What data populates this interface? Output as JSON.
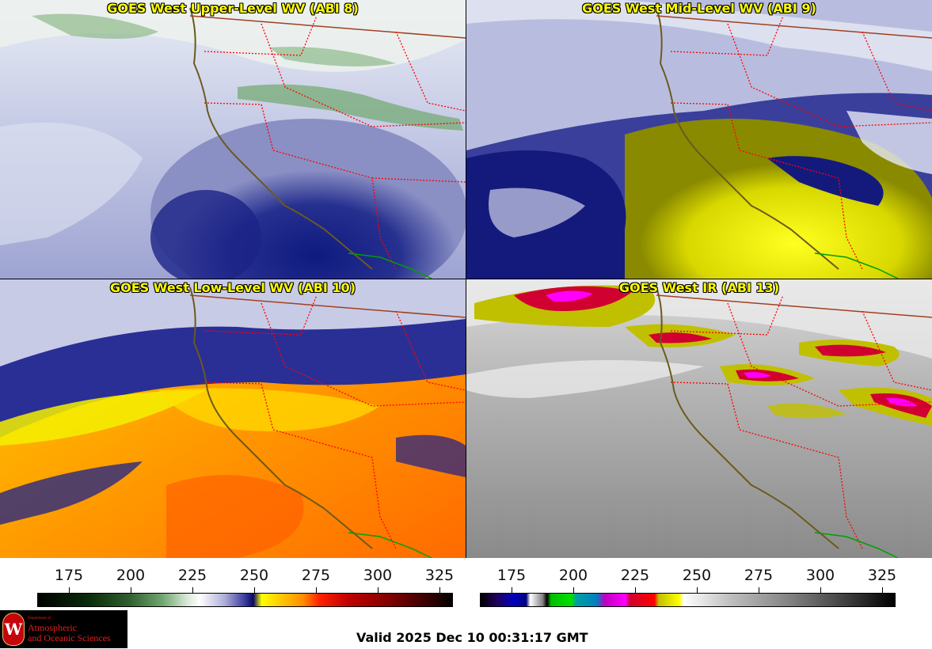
{
  "panels": [
    {
      "title": "GOES West Upper-Level WV (ABI 8)"
    },
    {
      "title": "GOES West Mid-Level WV (ABI 9)"
    },
    {
      "title": "GOES West Low-Level WV (ABI 10)"
    },
    {
      "title": "GOES West IR (ABI 13)"
    }
  ],
  "colorbars": {
    "left": {
      "ticks": [
        "175",
        "200",
        "225",
        "250",
        "275",
        "300",
        "325"
      ]
    },
    "right": {
      "ticks": [
        "175",
        "200",
        "225",
        "250",
        "275",
        "300",
        "325"
      ]
    }
  },
  "logo": {
    "dept": "Department of",
    "line1": "Atmospheric",
    "line2": "and Oceanic Sciences"
  },
  "valid_time": "Valid 2025 Dec 10 00:31:17 GMT",
  "colors": {
    "title_text": "#ffff00",
    "coast_line": "#6b5a1e",
    "state_border": "#ff0000",
    "country_border": "#00a000"
  }
}
